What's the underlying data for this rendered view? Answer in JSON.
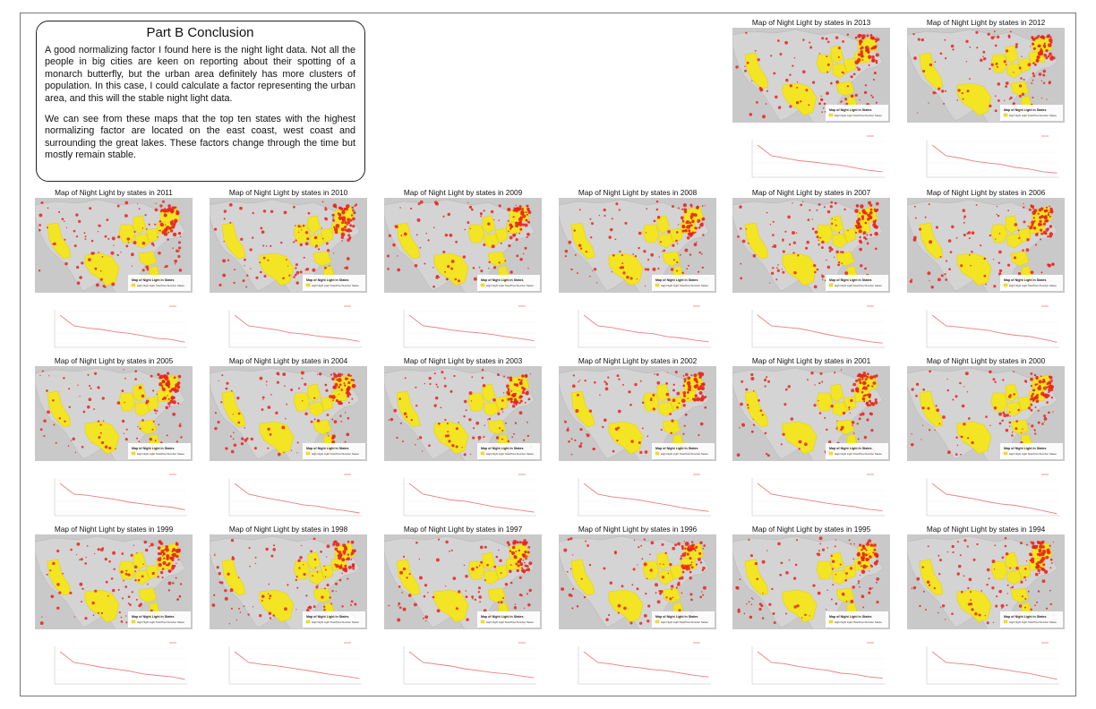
{
  "conclusion": {
    "title": "Part B Conclusion",
    "paragraphs": [
      "A good normalizing factor I found here is the night light data. Not all the people in big cities are keen on reporting about their spotting of a monarch butterfly, but the urban area definitely has more clusters of population. In this case, I could calculate a factor representing the urban area, and this will the stable night light data.",
      "We can see from these maps that the top ten states with the highest normalizing factor are located on the east coast, west coast and surrounding the great lakes. These factors change through the time but mostly remain stable."
    ]
  },
  "legend": {
    "title": "Map of Night Light in States",
    "item": "High Night Light Total Pixel Number States"
  },
  "colors": {
    "highlight_states": "#f5e61a",
    "night_light": "#e8231c",
    "basemap": "#d4d4d4",
    "chart_line": "#e88080"
  },
  "panels": [
    {
      "title": "Map of Night Light by states in 2013"
    },
    {
      "title": "Map of Night Light by states in 2012"
    },
    {
      "title": "Map of Night Light by states in 2011"
    },
    {
      "title": "Map of Night Light by states in 2010"
    },
    {
      "title": "Map of Night Light by states in 2009"
    },
    {
      "title": "Map of Night Light by states in 2008"
    },
    {
      "title": "Map of Night Light by states in 2007"
    },
    {
      "title": "Map of Night Light by states in 2006"
    },
    {
      "title": "Map of Night Light by states in 2005"
    },
    {
      "title": "Map of Night Light by states in 2004"
    },
    {
      "title": "Map of Night Light by states in 2003"
    },
    {
      "title": "Map of Night Light by states in 2002"
    },
    {
      "title": "Map of Night Light by states in 2001"
    },
    {
      "title": "Map of Night Light by states in 2000"
    },
    {
      "title": "Map of Night Light by states in 1999"
    },
    {
      "title": "Map of Night Light by states in 1998"
    },
    {
      "title": "Map of Night Light by states in 1997"
    },
    {
      "title": "Map of Night Light by states in 1996"
    },
    {
      "title": "Map of Night Light by states in 1995"
    },
    {
      "title": "Map of Night Light by states in 1994"
    }
  ]
}
